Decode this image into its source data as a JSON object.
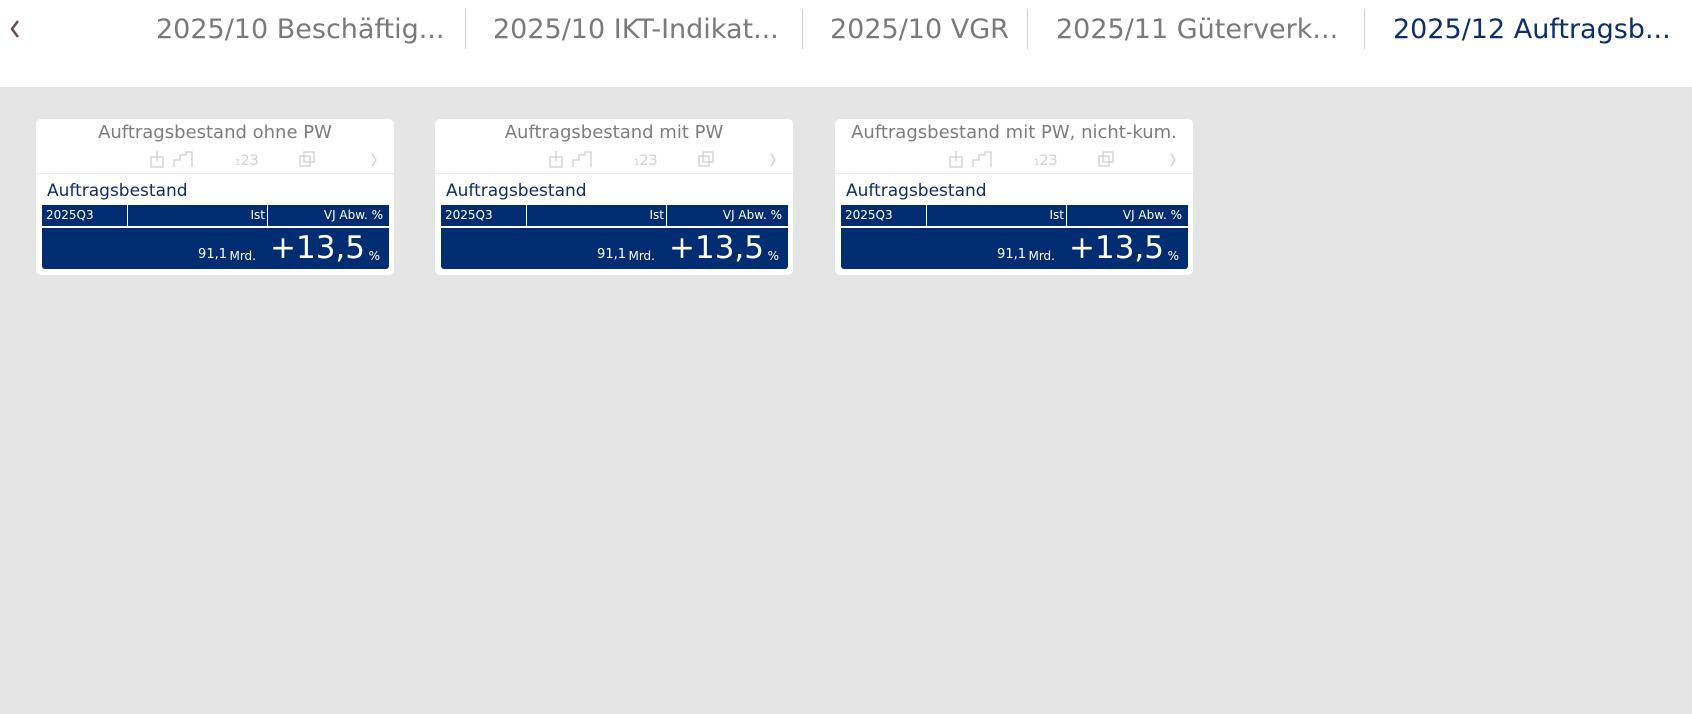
{
  "tabs": [
    {
      "label": "2025/10 Beschäftig...",
      "active": false
    },
    {
      "label": "2025/10 IKT-Indikat...",
      "active": false
    },
    {
      "label": "2025/10 VGR",
      "active": false
    },
    {
      "label": "2025/11 Güterverk...",
      "active": false
    },
    {
      "label": "2025/12 Auftragsb...",
      "active": true
    }
  ],
  "cards": [
    {
      "title": "Auftragsbestand ohne PW",
      "subtitle": "Auftragsbestand",
      "table": {
        "header": [
          "2025Q3",
          "Ist",
          "VJ Abw. %"
        ],
        "value": "91,1",
        "unit": "Mrd.",
        "change": "+13,5",
        "change_unit": "%"
      }
    },
    {
      "title": "Auftragsbestand mit PW",
      "subtitle": "Auftragsbestand",
      "table": {
        "header": [
          "2025Q3",
          "Ist",
          "VJ Abw. %"
        ],
        "value": "91,1",
        "unit": "Mrd.",
        "change": "+13,5",
        "change_unit": "%"
      }
    },
    {
      "title": "Auftragsbestand mit PW, nicht-kum.",
      "subtitle": "Auftragsbestand",
      "table": {
        "header": [
          "2025Q3",
          "Ist",
          "VJ Abw. %"
        ],
        "value": "91,1",
        "unit": "Mrd.",
        "change": "+13,5",
        "change_unit": "%"
      }
    }
  ]
}
